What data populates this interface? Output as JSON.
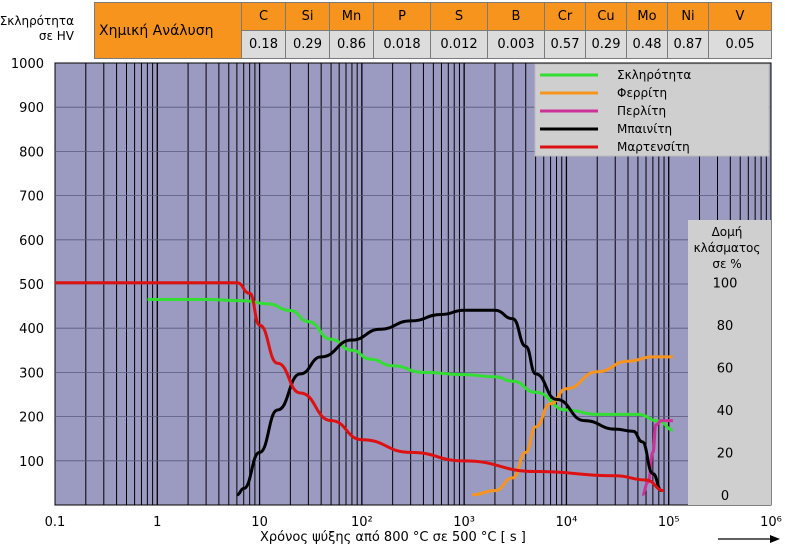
{
  "chemical_analysis": {
    "title": "Χημική Ανάλυση",
    "elements": [
      "C",
      "Si",
      "Mn",
      "P",
      "S",
      "B",
      "Cr",
      "Cu",
      "Mo",
      "Ni",
      "V"
    ],
    "values": [
      "0.18",
      "0.29",
      "0.86",
      "0.018",
      "0.012",
      "0.003",
      "0.57",
      "0.29",
      "0.48",
      "0.87",
      "0.05"
    ]
  },
  "colors": {
    "plot_bg": "#9b9bc2",
    "header_bg": "#f7941d",
    "value_bg": "#dcdcdc",
    "legend_bg": "#cfcfcf",
    "right_panel_bg": "#cfcfcf"
  },
  "chart_data": {
    "type": "line",
    "ylabel": "Σκληρότητα σε HV",
    "y2label": "Δομή κλάσματος σε %",
    "xlabel": "Χρόνος ψύξης από 800 °C σε 500 °C [ s ]",
    "xscale": "log",
    "xlim": [
      0.1,
      1000000
    ],
    "ylim": [
      0,
      1000
    ],
    "y2lim": [
      0,
      100
    ],
    "x_ticks": [
      "0.1",
      "1",
      "10",
      "10²",
      "10³",
      "10⁴",
      "10⁵",
      "10⁶"
    ],
    "y_ticks": [
      "100",
      "200",
      "300",
      "400",
      "500",
      "600",
      "700",
      "800",
      "900",
      "1000"
    ],
    "y2_ticks": [
      "0",
      "20",
      "40",
      "60",
      "80",
      "100"
    ],
    "legend_position": "top-right",
    "series": [
      {
        "name": "Σκληρότητα",
        "color": "#33dd33",
        "axis": "left",
        "points": [
          [
            0.8,
            465
          ],
          [
            1,
            465
          ],
          [
            3,
            465
          ],
          [
            7,
            462
          ],
          [
            12,
            455
          ],
          [
            20,
            440
          ],
          [
            30,
            415
          ],
          [
            50,
            375
          ],
          [
            80,
            350
          ],
          [
            120,
            330
          ],
          [
            200,
            315
          ],
          [
            400,
            300
          ],
          [
            1000,
            295
          ],
          [
            2000,
            290
          ],
          [
            3000,
            280
          ],
          [
            5000,
            255
          ],
          [
            10000,
            215
          ],
          [
            20000,
            205
          ],
          [
            50000,
            205
          ],
          [
            80000,
            190
          ],
          [
            110000,
            170
          ]
        ]
      },
      {
        "name": "Φερρίτη",
        "color": "#f7941d",
        "axis": "right",
        "points": [
          [
            1200,
            0
          ],
          [
            2000,
            2
          ],
          [
            3000,
            8
          ],
          [
            4000,
            20
          ],
          [
            5000,
            32
          ],
          [
            7000,
            43
          ],
          [
            10000,
            50
          ],
          [
            20000,
            58
          ],
          [
            40000,
            63
          ],
          [
            70000,
            65
          ],
          [
            110000,
            65
          ]
        ]
      },
      {
        "name": "Περλίτη",
        "color": "#cc3399",
        "axis": "right",
        "points": [
          [
            55000,
            0
          ],
          [
            63000,
            6
          ],
          [
            70000,
            20
          ],
          [
            75000,
            33
          ],
          [
            85000,
            35
          ],
          [
            110000,
            35
          ]
        ]
      },
      {
        "name": "Μπαινίτη",
        "color": "#000000",
        "axis": "right",
        "points": [
          [
            6,
            0
          ],
          [
            7,
            3
          ],
          [
            10,
            20
          ],
          [
            15,
            40
          ],
          [
            25,
            57
          ],
          [
            40,
            65
          ],
          [
            80,
            73
          ],
          [
            150,
            78
          ],
          [
            300,
            82
          ],
          [
            600,
            85
          ],
          [
            1000,
            87
          ],
          [
            2000,
            87
          ],
          [
            3000,
            83
          ],
          [
            4000,
            70
          ],
          [
            5000,
            57
          ],
          [
            8000,
            45
          ],
          [
            15000,
            35
          ],
          [
            30000,
            31
          ],
          [
            45000,
            30
          ],
          [
            55000,
            25
          ],
          [
            70000,
            10
          ],
          [
            85000,
            2
          ]
        ]
      },
      {
        "name": "Μαρτενσίτη",
        "color": "#dd1111",
        "axis": "right",
        "points": [
          [
            0.1,
            100
          ],
          [
            1,
            100
          ],
          [
            6,
            100
          ],
          [
            8,
            95
          ],
          [
            10,
            80
          ],
          [
            15,
            62
          ],
          [
            25,
            48
          ],
          [
            50,
            35
          ],
          [
            100,
            26
          ],
          [
            300,
            20
          ],
          [
            1000,
            16
          ],
          [
            5000,
            11
          ],
          [
            30000,
            9
          ],
          [
            60000,
            7
          ],
          [
            90000,
            2
          ]
        ]
      }
    ]
  }
}
